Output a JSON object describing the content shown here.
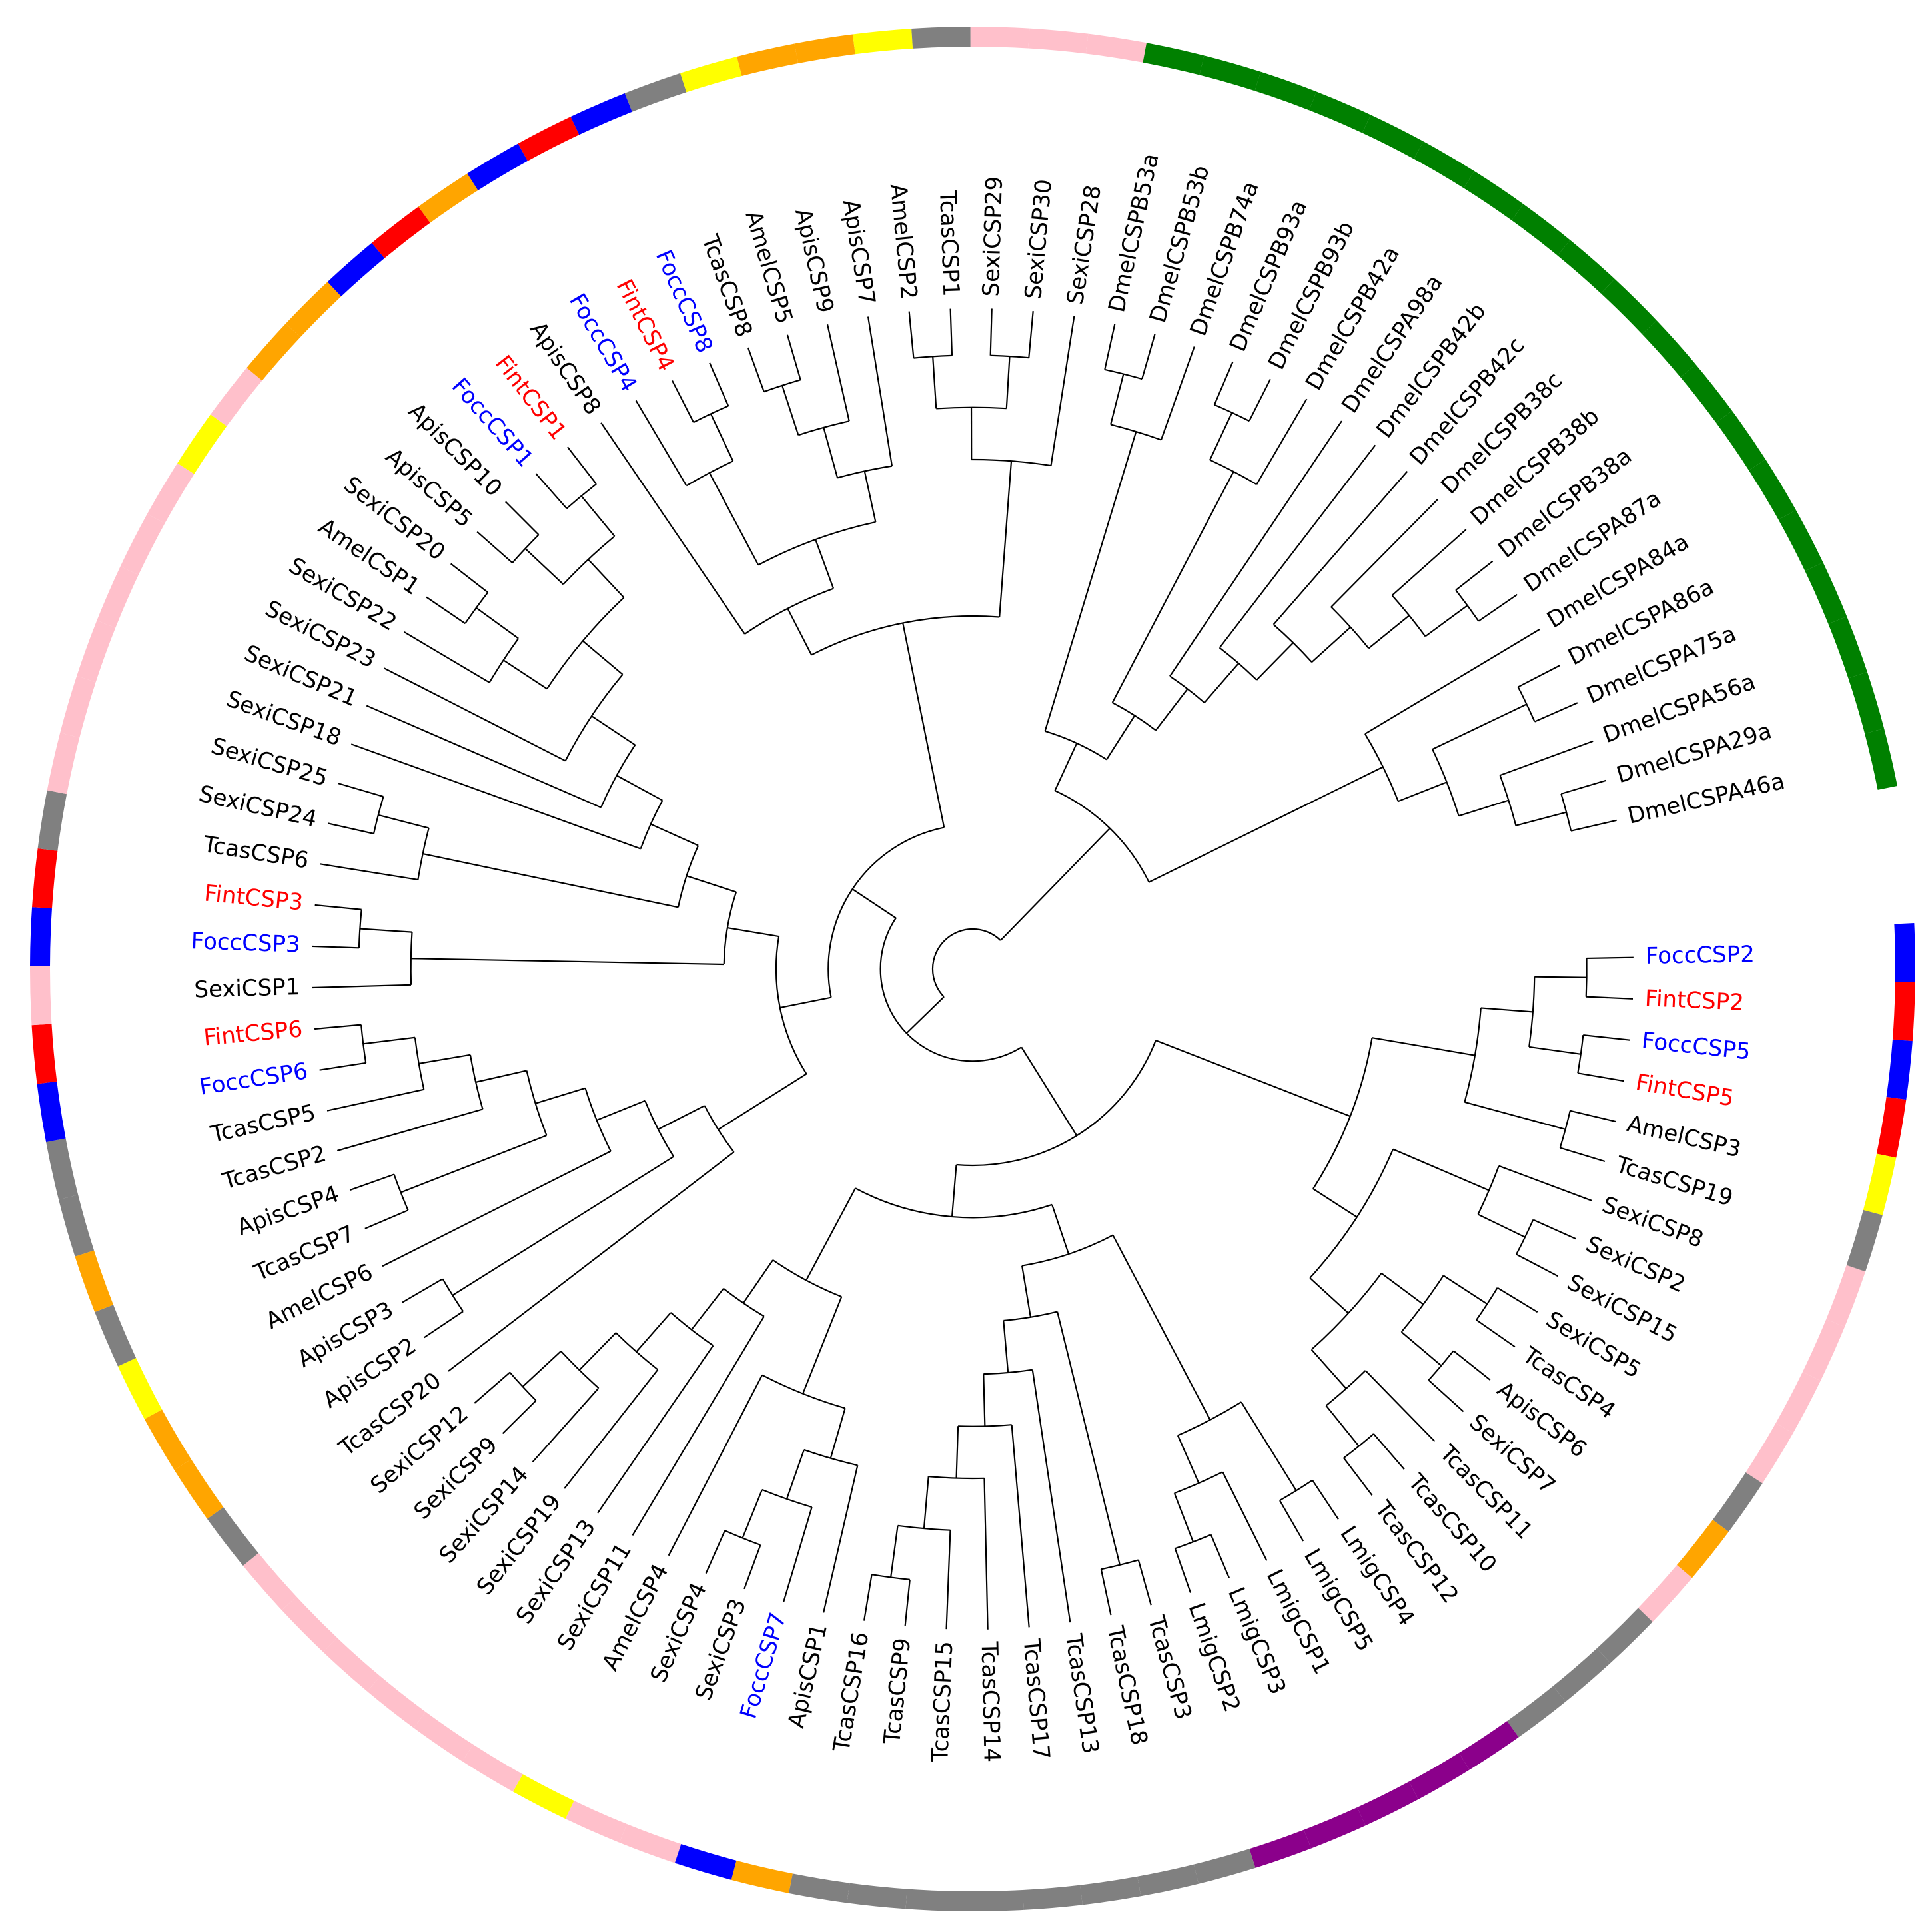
{
  "leaves": [
    {
      "label": "FoccCSP2",
      "text_color": "#0000ff",
      "ring_color": "#0000ff"
    },
    {
      "label": "FintCSP2",
      "text_color": "#ff0000",
      "ring_color": "#ff0000"
    },
    {
      "label": "FoccCSP5",
      "text_color": "#0000ff",
      "ring_color": "#0000ff"
    },
    {
      "label": "FintCSP5",
      "text_color": "#ff0000",
      "ring_color": "#ff0000"
    },
    {
      "label": "AmelCSP3",
      "text_color": "#000000",
      "ring_color": "#ffff00"
    },
    {
      "label": "TcasCSP19",
      "text_color": "#000000",
      "ring_color": "#808080"
    },
    {
      "label": "SexiCSP8",
      "text_color": "#000000",
      "ring_color": "#ffc0cb"
    },
    {
      "label": "SexiCSP2",
      "text_color": "#000000",
      "ring_color": "#ffc0cb"
    },
    {
      "label": "SexiCSP15",
      "text_color": "#000000",
      "ring_color": "#ffc0cb"
    },
    {
      "label": "SexiCSP5",
      "text_color": "#000000",
      "ring_color": "#ffc0cb"
    },
    {
      "label": "TcasCSP4",
      "text_color": "#000000",
      "ring_color": "#808080"
    },
    {
      "label": "ApisCSP6",
      "text_color": "#000000",
      "ring_color": "#ffa500"
    },
    {
      "label": "SexiCSP7",
      "text_color": "#000000",
      "ring_color": "#ffc0cb"
    },
    {
      "label": "TcasCSP11",
      "text_color": "#000000",
      "ring_color": "#808080"
    },
    {
      "label": "TcasCSP10",
      "text_color": "#000000",
      "ring_color": "#808080"
    },
    {
      "label": "TcasCSP12",
      "text_color": "#000000",
      "ring_color": "#808080"
    },
    {
      "label": "LmigCSP4",
      "text_color": "#000000",
      "ring_color": "#8b008b"
    },
    {
      "label": "LmigCSP5",
      "text_color": "#000000",
      "ring_color": "#8b008b"
    },
    {
      "label": "LmigCSP1",
      "text_color": "#000000",
      "ring_color": "#8b008b"
    },
    {
      "label": "LmigCSP3",
      "text_color": "#000000",
      "ring_color": "#8b008b"
    },
    {
      "label": "LmigCSP2",
      "text_color": "#000000",
      "ring_color": "#8b008b"
    },
    {
      "label": "TcasCSP3",
      "text_color": "#000000",
      "ring_color": "#808080"
    },
    {
      "label": "TcasCSP18",
      "text_color": "#000000",
      "ring_color": "#808080"
    },
    {
      "label": "TcasCSP13",
      "text_color": "#000000",
      "ring_color": "#808080"
    },
    {
      "label": "TcasCSP17",
      "text_color": "#000000",
      "ring_color": "#808080"
    },
    {
      "label": "TcasCSP14",
      "text_color": "#000000",
      "ring_color": "#808080"
    },
    {
      "label": "TcasCSP15",
      "text_color": "#000000",
      "ring_color": "#808080"
    },
    {
      "label": "TcasCSP9",
      "text_color": "#000000",
      "ring_color": "#808080"
    },
    {
      "label": "TcasCSP16",
      "text_color": "#000000",
      "ring_color": "#808080"
    },
    {
      "label": "ApisCSP1",
      "text_color": "#000000",
      "ring_color": "#ffa500"
    },
    {
      "label": "FoccCSP7",
      "text_color": "#0000ff",
      "ring_color": "#0000ff"
    },
    {
      "label": "SexiCSP3",
      "text_color": "#000000",
      "ring_color": "#ffc0cb"
    },
    {
      "label": "SexiCSP4",
      "text_color": "#000000",
      "ring_color": "#ffc0cb"
    },
    {
      "label": "AmelCSP4",
      "text_color": "#000000",
      "ring_color": "#ffff00"
    },
    {
      "label": "SexiCSP11",
      "text_color": "#000000",
      "ring_color": "#ffc0cb"
    },
    {
      "label": "SexiCSP13",
      "text_color": "#000000",
      "ring_color": "#ffc0cb"
    },
    {
      "label": "SexiCSP19",
      "text_color": "#000000",
      "ring_color": "#ffc0cb"
    },
    {
      "label": "SexiCSP14",
      "text_color": "#000000",
      "ring_color": "#ffc0cb"
    },
    {
      "label": "SexiCSP9",
      "text_color": "#000000",
      "ring_color": "#ffc0cb"
    },
    {
      "label": "SexiCSP12",
      "text_color": "#000000",
      "ring_color": "#ffc0cb"
    },
    {
      "label": "TcasCSP20",
      "text_color": "#000000",
      "ring_color": "#808080"
    },
    {
      "label": "ApisCSP2",
      "text_color": "#000000",
      "ring_color": "#ffa500"
    },
    {
      "label": "ApisCSP3",
      "text_color": "#000000",
      "ring_color": "#ffa500"
    },
    {
      "label": "AmelCSP6",
      "text_color": "#000000",
      "ring_color": "#ffff00"
    },
    {
      "label": "TcasCSP7",
      "text_color": "#000000",
      "ring_color": "#808080"
    },
    {
      "label": "ApisCSP4",
      "text_color": "#000000",
      "ring_color": "#ffa500"
    },
    {
      "label": "TcasCSP2",
      "text_color": "#000000",
      "ring_color": "#808080"
    },
    {
      "label": "TcasCSP5",
      "text_color": "#000000",
      "ring_color": "#808080"
    },
    {
      "label": "FoccCSP6",
      "text_color": "#0000ff",
      "ring_color": "#0000ff"
    },
    {
      "label": "FintCSP6",
      "text_color": "#ff0000",
      "ring_color": "#ff0000"
    },
    {
      "label": "SexiCSP1",
      "text_color": "#000000",
      "ring_color": "#ffc0cb"
    },
    {
      "label": "FoccCSP3",
      "text_color": "#0000ff",
      "ring_color": "#0000ff"
    },
    {
      "label": "FintCSP3",
      "text_color": "#ff0000",
      "ring_color": "#ff0000"
    },
    {
      "label": "TcasCSP6",
      "text_color": "#000000",
      "ring_color": "#808080"
    },
    {
      "label": "SexiCSP24",
      "text_color": "#000000",
      "ring_color": "#ffc0cb"
    },
    {
      "label": "SexiCSP25",
      "text_color": "#000000",
      "ring_color": "#ffc0cb"
    },
    {
      "label": "SexiCSP18",
      "text_color": "#000000",
      "ring_color": "#ffc0cb"
    },
    {
      "label": "SexiCSP21",
      "text_color": "#000000",
      "ring_color": "#ffc0cb"
    },
    {
      "label": "SexiCSP23",
      "text_color": "#000000",
      "ring_color": "#ffc0cb"
    },
    {
      "label": "SexiCSP22",
      "text_color": "#000000",
      "ring_color": "#ffc0cb"
    },
    {
      "label": "AmelCSP1",
      "text_color": "#000000",
      "ring_color": "#ffff00"
    },
    {
      "label": "SexiCSP20",
      "text_color": "#000000",
      "ring_color": "#ffc0cb"
    },
    {
      "label": "ApisCSP5",
      "text_color": "#000000",
      "ring_color": "#ffa500"
    },
    {
      "label": "ApisCSP10",
      "text_color": "#000000",
      "ring_color": "#ffa500"
    },
    {
      "label": "FoccCSP1",
      "text_color": "#0000ff",
      "ring_color": "#0000ff"
    },
    {
      "label": "FintCSP1",
      "text_color": "#ff0000",
      "ring_color": "#ff0000"
    },
    {
      "label": "ApisCSP8",
      "text_color": "#000000",
      "ring_color": "#ffa500"
    },
    {
      "label": "FoccCSP4",
      "text_color": "#0000ff",
      "ring_color": "#0000ff"
    },
    {
      "label": "FintCSP4",
      "text_color": "#ff0000",
      "ring_color": "#ff0000"
    },
    {
      "label": "FoccCSP8",
      "text_color": "#0000ff",
      "ring_color": "#0000ff"
    },
    {
      "label": "TcasCSP8",
      "text_color": "#000000",
      "ring_color": "#808080"
    },
    {
      "label": "AmelCSP5",
      "text_color": "#000000",
      "ring_color": "#ffff00"
    },
    {
      "label": "ApisCSP9",
      "text_color": "#000000",
      "ring_color": "#ffa500"
    },
    {
      "label": "ApisCSP7",
      "text_color": "#000000",
      "ring_color": "#ffa500"
    },
    {
      "label": "AmelCSP2",
      "text_color": "#000000",
      "ring_color": "#ffff00"
    },
    {
      "label": "TcasCSP1",
      "text_color": "#000000",
      "ring_color": "#808080"
    },
    {
      "label": "SexiCSP29",
      "text_color": "#000000",
      "ring_color": "#ffc0cb"
    },
    {
      "label": "SexiCSP30",
      "text_color": "#000000",
      "ring_color": "#ffc0cb"
    },
    {
      "label": "SexiCSP28",
      "text_color": "#000000",
      "ring_color": "#ffc0cb"
    },
    {
      "label": "DmelCSPB53a",
      "text_color": "#000000",
      "ring_color": "#008000"
    },
    {
      "label": "DmelCSPB53b",
      "text_color": "#000000",
      "ring_color": "#008000"
    },
    {
      "label": "DmelCSPB74a",
      "text_color": "#000000",
      "ring_color": "#008000"
    },
    {
      "label": "DmelCSPB93a",
      "text_color": "#000000",
      "ring_color": "#008000"
    },
    {
      "label": "DmelCSPB93b",
      "text_color": "#000000",
      "ring_color": "#008000"
    },
    {
      "label": "DmelCSPB42a",
      "text_color": "#000000",
      "ring_color": "#008000"
    },
    {
      "label": "DmelCSPA98a",
      "text_color": "#000000",
      "ring_color": "#008000"
    },
    {
      "label": "DmelCSPB42b",
      "text_color": "#000000",
      "ring_color": "#008000"
    },
    {
      "label": "DmelCSPB42c",
      "text_color": "#000000",
      "ring_color": "#008000"
    },
    {
      "label": "DmelCSPB38c",
      "text_color": "#000000",
      "ring_color": "#008000"
    },
    {
      "label": "DmelCSPB38b",
      "text_color": "#000000",
      "ring_color": "#008000"
    },
    {
      "label": "DmelCSPB38a",
      "text_color": "#000000",
      "ring_color": "#008000"
    },
    {
      "label": "DmelCSPA87a",
      "text_color": "#000000",
      "ring_color": "#008000"
    },
    {
      "label": "DmelCSPA84a",
      "text_color": "#000000",
      "ring_color": "#008000"
    },
    {
      "label": "DmelCSPA86a",
      "text_color": "#000000",
      "ring_color": "#008000"
    },
    {
      "label": "DmelCSPA75a",
      "text_color": "#000000",
      "ring_color": "#008000"
    },
    {
      "label": "DmelCSPA56a",
      "text_color": "#000000",
      "ring_color": "#008000"
    },
    {
      "label": "DmelCSPA29a",
      "text_color": "#000000",
      "ring_color": "#008000"
    },
    {
      "label": "DmelCSPA46a",
      "text_color": "#000000",
      "ring_color": "#008000"
    }
  ]
}
